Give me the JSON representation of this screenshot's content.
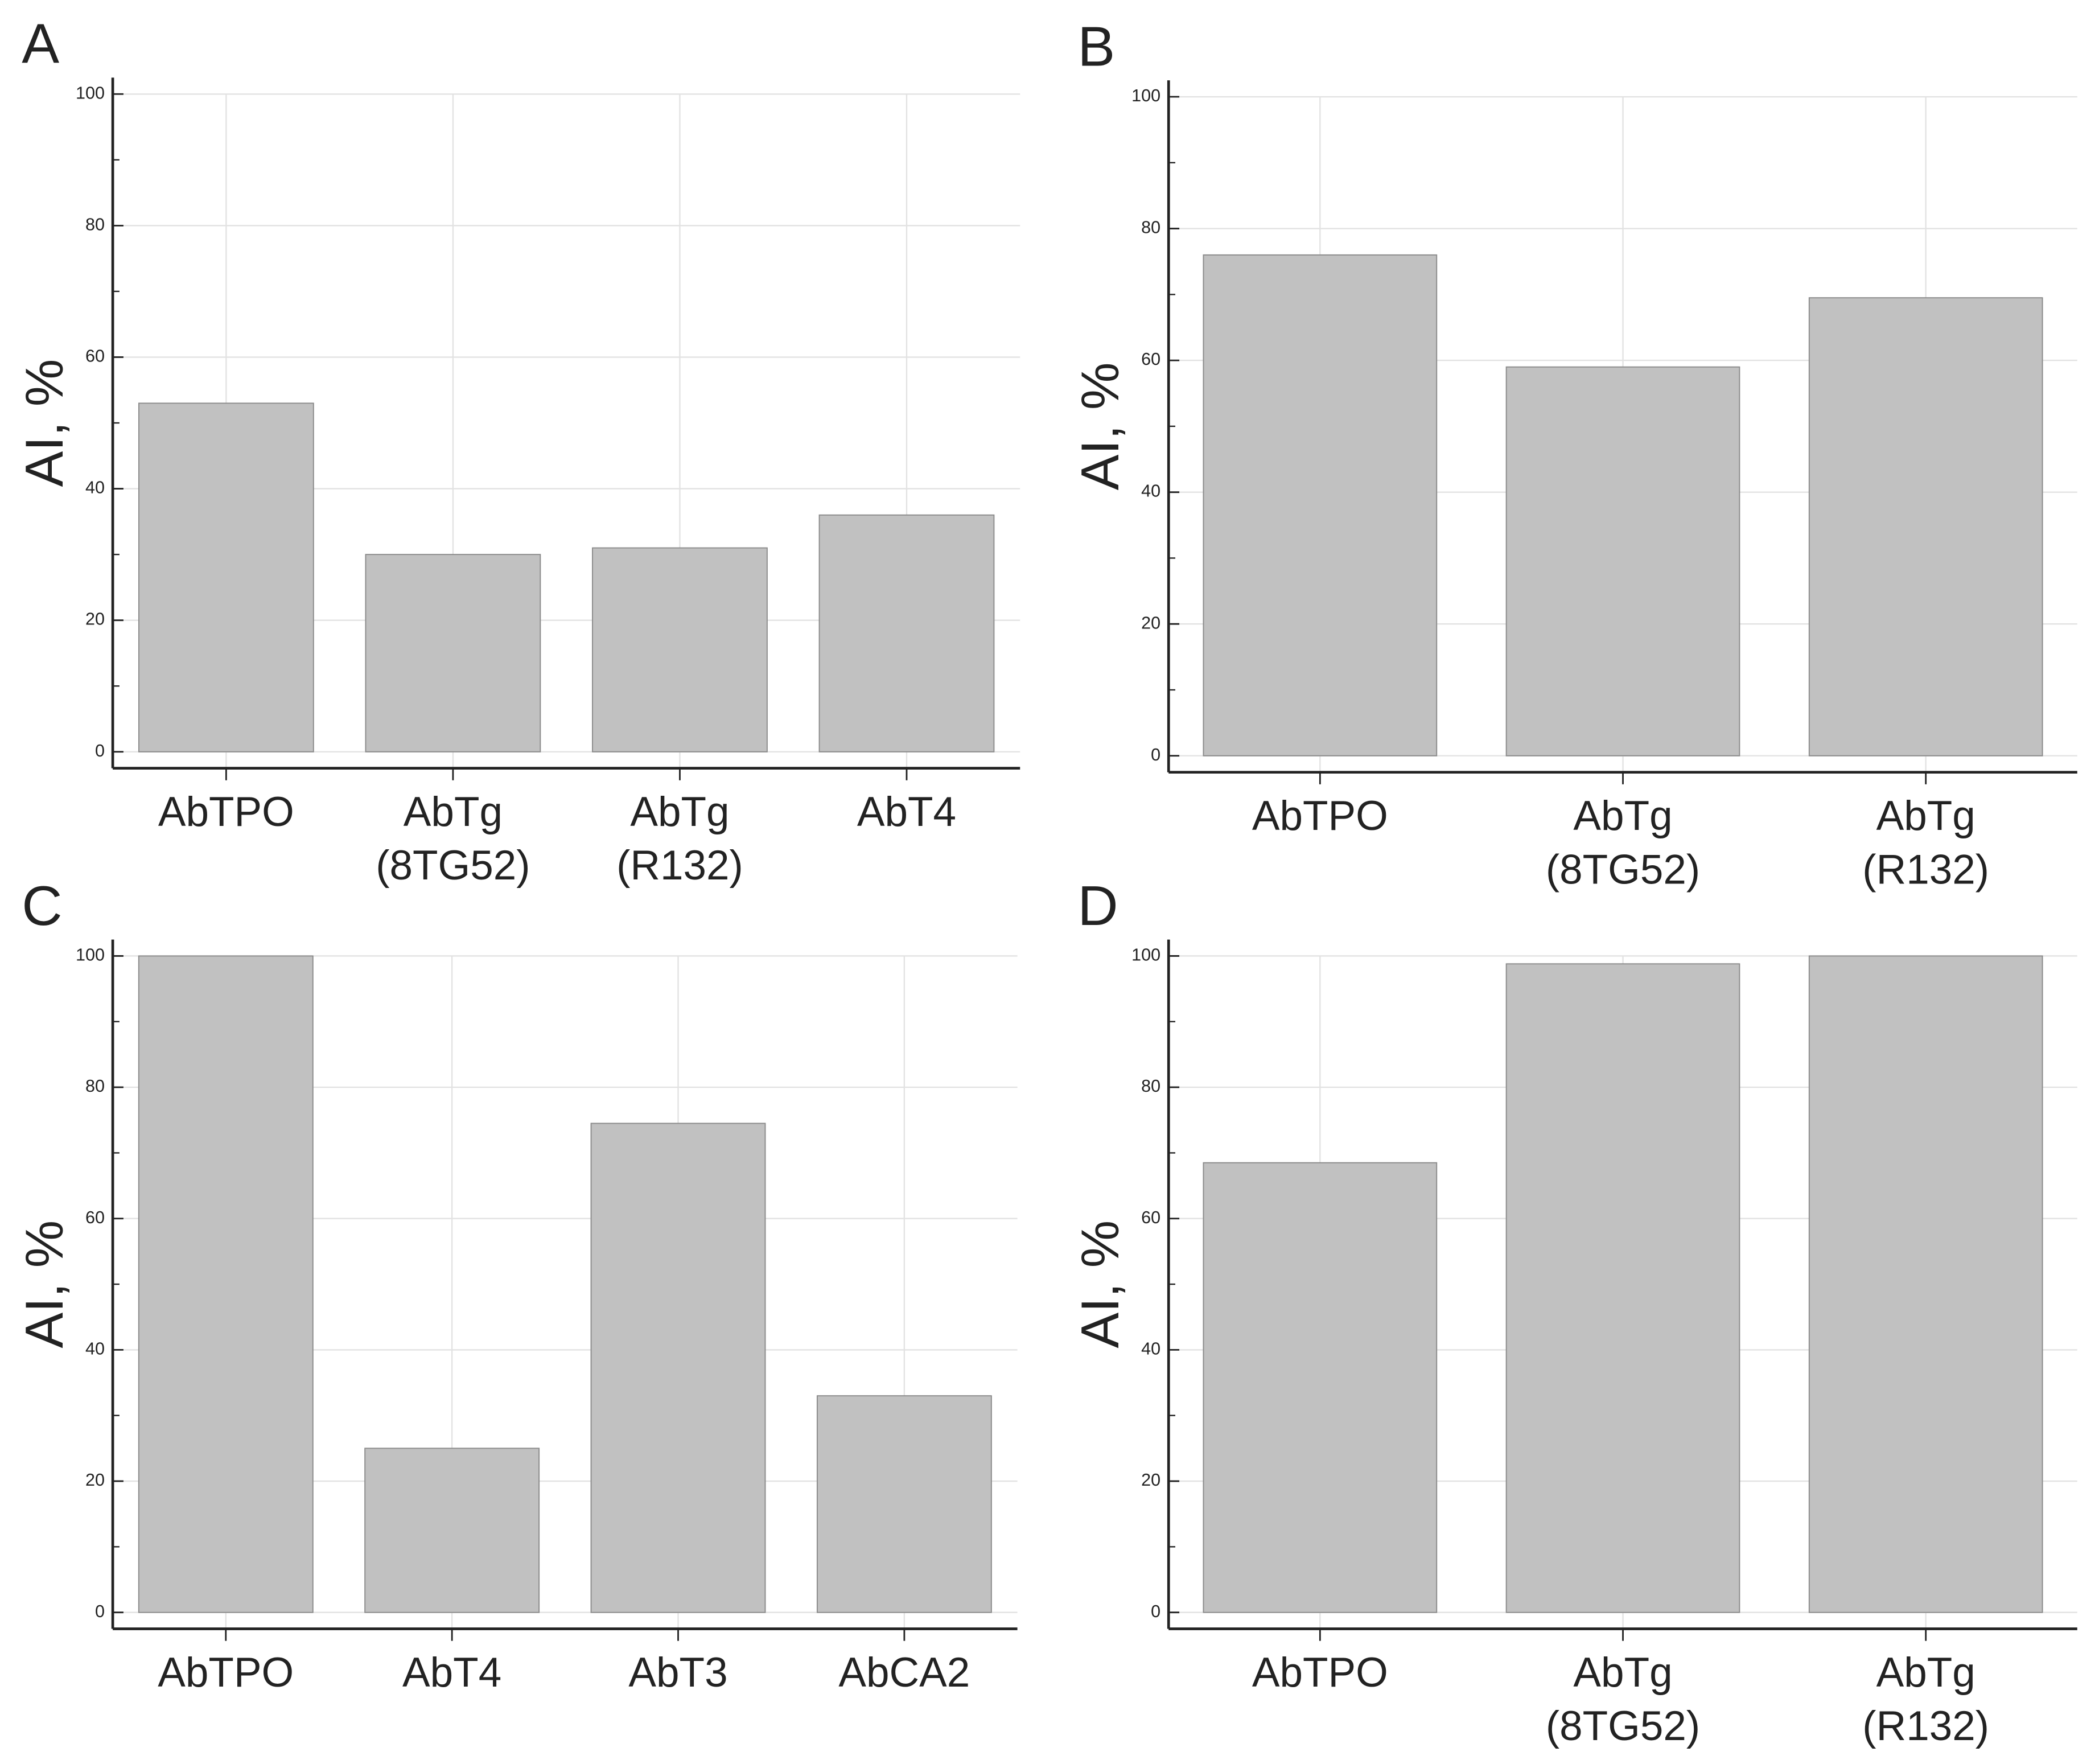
{
  "chart_data": [
    {
      "type": "bar",
      "panel": "A",
      "y_label": "AI, %",
      "categories": [
        [
          "AbTPO"
        ],
        [
          "AbTg",
          "(8TG52)"
        ],
        [
          "AbTg",
          "(R132)"
        ],
        [
          "AbT4"
        ]
      ],
      "values": [
        53,
        30,
        31,
        36
      ],
      "color": "#c1c1c1",
      "ylim": [
        -2.5,
        102.5
      ],
      "yticks": [
        0,
        20,
        40,
        60,
        80,
        100
      ],
      "minor_yticks": [
        10,
        30,
        50,
        70,
        90
      ],
      "grid": true
    },
    {
      "type": "bar",
      "panel": "B",
      "y_label": "AI, %",
      "categories": [
        [
          "AbTPO"
        ],
        [
          "AbTg",
          "(8TG52)"
        ],
        [
          "AbTg",
          "(R132)"
        ]
      ],
      "values": [
        76,
        59,
        69.5
      ],
      "color": "#c1c1c1",
      "ylim": [
        -2.5,
        102.5
      ],
      "yticks": [
        0,
        20,
        40,
        60,
        80,
        100
      ],
      "minor_yticks": [
        10,
        30,
        50,
        70,
        90
      ],
      "grid": true
    },
    {
      "type": "bar",
      "panel": "C",
      "y_label": "AI, %",
      "categories": [
        [
          "AbTPO"
        ],
        [
          "AbT4"
        ],
        [
          "AbT3"
        ],
        [
          "AbCA2"
        ]
      ],
      "values": [
        100,
        25,
        74.5,
        33
      ],
      "color": "#c1c1c1",
      "ylim": [
        -2.5,
        102.5
      ],
      "yticks": [
        0,
        20,
        40,
        60,
        80,
        100
      ],
      "minor_yticks": [
        10,
        30,
        50,
        70,
        90
      ],
      "grid": true
    },
    {
      "type": "bar",
      "panel": "D",
      "y_label": "AI, %",
      "categories": [
        [
          "AbTPO"
        ],
        [
          "AbTg",
          "(8TG52)"
        ],
        [
          "AbTg",
          "(R132)"
        ]
      ],
      "values": [
        68.5,
        98.8,
        100
      ],
      "color": "#c1c1c1",
      "ylim": [
        -2.5,
        102.5
      ],
      "yticks": [
        0,
        20,
        40,
        60,
        80,
        100
      ],
      "minor_yticks": [
        10,
        30,
        50,
        70,
        90
      ],
      "grid": true
    }
  ]
}
